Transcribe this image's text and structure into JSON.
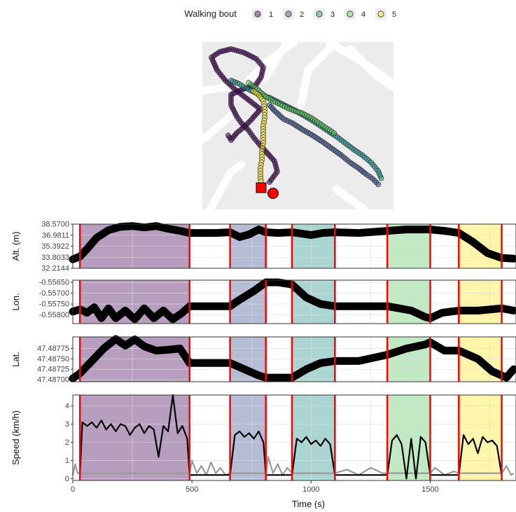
{
  "legend": {
    "title": "Walking bout",
    "items": [
      {
        "label": "1",
        "color": "#440154"
      },
      {
        "label": "2",
        "color": "#3b528b"
      },
      {
        "label": "3",
        "color": "#21908c"
      },
      {
        "label": "4",
        "color": "#5dc863"
      },
      {
        "label": "5",
        "color": "#fde725"
      }
    ]
  },
  "chart_data": [
    {
      "type": "scatter",
      "panel": "map",
      "title": "",
      "markers": {
        "start": "square",
        "end": "circle",
        "marker_color": "#ff0000"
      },
      "background": "street map"
    },
    {
      "type": "line",
      "panel": "altitude",
      "ylabel": "Alt. (m)",
      "yticks": [
        "32.2144",
        "33.8033",
        "35.3922",
        "36.9811",
        "38.5700"
      ],
      "ylim": [
        32.2144,
        38.57
      ],
      "x": [
        0,
        30,
        60,
        100,
        150,
        200,
        250,
        300,
        350,
        400,
        450,
        490,
        550,
        600,
        660,
        700,
        740,
        780,
        810,
        860,
        920,
        1000,
        1050,
        1100,
        1200,
        1320,
        1400,
        1500,
        1560,
        1620,
        1680,
        1740,
        1800,
        1850
      ],
      "y": [
        33.5,
        33.9,
        35.0,
        36.6,
        37.7,
        38.2,
        38.3,
        38.1,
        38.3,
        37.9,
        37.6,
        37.3,
        37.3,
        37.3,
        37.4,
        36.7,
        37.1,
        37.8,
        37.4,
        37.3,
        37.4,
        37.0,
        37.3,
        37.4,
        37.3,
        37.6,
        37.8,
        37.8,
        37.6,
        37.3,
        36.0,
        34.4,
        33.7,
        33.6
      ]
    },
    {
      "type": "line",
      "panel": "longitude",
      "ylabel": "Lon.",
      "yticks": [
        "-0.55800",
        "-0.55750",
        "-0.55700",
        "-0.55650"
      ],
      "ylim": [
        -0.5584,
        -0.5564
      ],
      "x": [
        0,
        30,
        60,
        90,
        120,
        150,
        180,
        220,
        260,
        300,
        340,
        380,
        420,
        460,
        490,
        560,
        660,
        700,
        760,
        810,
        860,
        920,
        980,
        1040,
        1100,
        1200,
        1320,
        1420,
        1480,
        1500,
        1550,
        1620,
        1700,
        1800,
        1850
      ],
      "y": [
        -0.55785,
        -0.55775,
        -0.5579,
        -0.55765,
        -0.55815,
        -0.5577,
        -0.55815,
        -0.5578,
        -0.5582,
        -0.5577,
        -0.55815,
        -0.5578,
        -0.5582,
        -0.5579,
        -0.5576,
        -0.5576,
        -0.5576,
        -0.5573,
        -0.5569,
        -0.5565,
        -0.5565,
        -0.5566,
        -0.5572,
        -0.5575,
        -0.5576,
        -0.5576,
        -0.5576,
        -0.5578,
        -0.5581,
        -0.55815,
        -0.5579,
        -0.5578,
        -0.5578,
        -0.5577,
        -0.5578
      ]
    },
    {
      "type": "line",
      "panel": "latitude",
      "ylabel": "Lat.",
      "yticks": [
        "47.48700",
        "47.48725",
        "47.48750",
        "47.48775"
      ],
      "ylim": [
        47.48695,
        47.48803
      ],
      "x": [
        0,
        30,
        80,
        130,
        180,
        220,
        260,
        300,
        350,
        400,
        450,
        490,
        560,
        660,
        720,
        780,
        810,
        860,
        920,
        980,
        1040,
        1100,
        1200,
        1320,
        1400,
        1480,
        1500,
        1560,
        1620,
        1700,
        1760,
        1820,
        1850
      ],
      "y": [
        47.48703,
        47.48715,
        47.48745,
        47.48775,
        47.48798,
        47.48782,
        47.48797,
        47.4878,
        47.4877,
        47.48772,
        47.48775,
        47.4874,
        47.4874,
        47.4874,
        47.48725,
        47.4871,
        47.48705,
        47.48705,
        47.48705,
        47.48725,
        47.4874,
        47.48745,
        47.48745,
        47.4876,
        47.48775,
        47.48785,
        47.4879,
        47.4877,
        47.4877,
        47.4875,
        47.4872,
        47.48705,
        47.48725
      ]
    },
    {
      "type": "line",
      "panel": "speed",
      "ylabel": "Speed (km/h)",
      "xlabel": "Time (s)",
      "yticks": [
        "0",
        "1",
        "2",
        "3",
        "4"
      ],
      "ylim": [
        -0.1,
        4.6
      ],
      "xticks": [
        0,
        500,
        1000,
        1500
      ],
      "xlim": [
        0,
        1860
      ],
      "bouts": [
        {
          "name": "1",
          "start": 30,
          "end": 490
        },
        {
          "name": "2",
          "start": 660,
          "end": 810
        },
        {
          "name": "3",
          "start": 920,
          "end": 1100
        },
        {
          "name": "4",
          "start": 1320,
          "end": 1500
        },
        {
          "name": "5",
          "start": 1620,
          "end": 1800
        }
      ],
      "bout_boundaries_s": [
        30,
        490,
        660,
        810,
        920,
        1100,
        1320,
        1500,
        1620,
        1800
      ],
      "series": [
        {
          "name": "",
          "color": "#000000",
          "x": [
            30,
            40,
            60,
            80,
            100,
            120,
            140,
            160,
            180,
            200,
            220,
            240,
            260,
            280,
            300,
            320,
            340,
            360,
            380,
            400,
            420,
            440,
            460,
            480,
            490,
            660,
            680,
            700,
            720,
            740,
            760,
            780,
            800,
            810,
            920,
            940,
            960,
            980,
            1000,
            1020,
            1040,
            1060,
            1080,
            1100,
            1320,
            1340,
            1360,
            1380,
            1400,
            1420,
            1440,
            1460,
            1480,
            1500,
            1620,
            1640,
            1660,
            1680,
            1700,
            1720,
            1740,
            1760,
            1780,
            1800
          ],
          "y": [
            0.2,
            3.1,
            2.9,
            3.1,
            2.8,
            3.2,
            2.7,
            3.0,
            2.6,
            3.0,
            2.9,
            2.4,
            2.8,
            3.0,
            2.5,
            2.9,
            2.7,
            1.2,
            2.9,
            2.6,
            4.6,
            2.5,
            2.9,
            2.2,
            0.2,
            0.2,
            2.4,
            2.6,
            2.3,
            2.5,
            2.2,
            2.6,
            2.0,
            0.2,
            0.2,
            2.2,
            2.0,
            2.3,
            1.9,
            2.1,
            1.8,
            2.2,
            1.9,
            0.2,
            0.2,
            2.1,
            2.4,
            1.9,
            0.0,
            2.2,
            0.0,
            2.3,
            2.0,
            0.2,
            0.2,
            2.4,
            1.9,
            2.2,
            1.4,
            2.3,
            2.0,
            2.1,
            1.8,
            0.2
          ]
        },
        {
          "name": "",
          "color": "#999999",
          "x": [
            0,
            10,
            20,
            490,
            500,
            520,
            540,
            560,
            580,
            600,
            620,
            640,
            660,
            810,
            820,
            840,
            860,
            880,
            900,
            920,
            1100,
            1150,
            1200,
            1250,
            1300,
            1320,
            1500,
            1520,
            1560,
            1600,
            1620,
            1800,
            1820,
            1840,
            1850
          ],
          "y": [
            0.2,
            0.8,
            0.3,
            0.3,
            1.0,
            0.3,
            0.7,
            0.2,
            0.9,
            0.3,
            0.6,
            0.2,
            0.3,
            0.3,
            1.2,
            0.3,
            0.8,
            0.2,
            0.6,
            0.3,
            0.3,
            0.5,
            0.2,
            0.6,
            0.3,
            0.3,
            0.3,
            0.6,
            0.2,
            0.4,
            0.3,
            0.3,
            0.7,
            0.2,
            0.3
          ]
        }
      ]
    }
  ]
}
